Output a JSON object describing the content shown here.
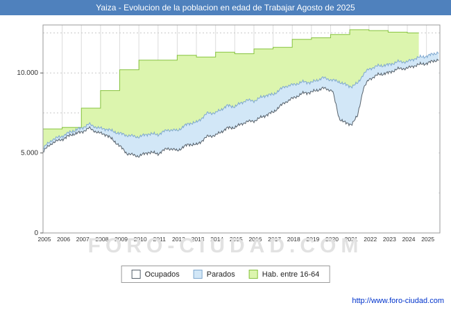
{
  "title": "Yaiza - Evolucion de la poblacion en edad de Trabajar Agosto de 2025",
  "watermark": "FORO-CIUDAD.COM",
  "footer": {
    "url": "http://www.foro-ciudad.com"
  },
  "colors": {
    "title_bar": "#4f81bd",
    "grid_vertical": "#dcdcdc",
    "grid_horizontal": "#c8c8c8",
    "plot_border": "#999999",
    "hab_fill": "#dcf5ae",
    "hab_stroke": "#86c33e",
    "parados_fill": "#d2e7f7",
    "parados_stroke": "#7fa8cf",
    "ocupados_fill": "#ffffff",
    "ocupados_stroke": "#55606a",
    "url_blue": "#0033cc"
  },
  "chart_data": {
    "type": "area",
    "title": "Yaiza - Evolucion de la poblacion en edad de Trabajar Agosto de 2025",
    "xlabel": "",
    "ylabel": "",
    "xlim": [
      2005,
      2025.7
    ],
    "ylim": [
      0,
      13000
    ],
    "grid": true,
    "legend_position": "bottom",
    "x_tick_labels": [
      "2005",
      "2006",
      "2007",
      "2008",
      "2009",
      "2010",
      "2011",
      "2012",
      "2013",
      "2014",
      "2015",
      "2016",
      "2017",
      "2018",
      "2019",
      "2020",
      "2021",
      "2022",
      "2023",
      "2024",
      "2025"
    ],
    "x_tick_values": [
      2005,
      2006,
      2007,
      2008,
      2009,
      2010,
      2011,
      2012,
      2013,
      2014,
      2015,
      2016,
      2017,
      2018,
      2019,
      2020,
      2021,
      2022,
      2023,
      2024,
      2025
    ],
    "y_ticks": [
      {
        "v": 0,
        "label": "0"
      },
      {
        "v": 5000,
        "label": "5.000"
      },
      {
        "v": 10000,
        "label": "10.000"
      }
    ],
    "y_grid_values": [
      2500,
      5000,
      7500,
      10000,
      12500
    ],
    "legend": [
      {
        "label": "Ocupados",
        "fill": "#ffffff",
        "border": "#55606a"
      },
      {
        "label": "Parados",
        "fill": "#d2e7f7",
        "border": "#7fa8cf"
      },
      {
        "label": "Hab. entre 16-64",
        "fill": "#dcf5ae",
        "border": "#86c33e"
      }
    ],
    "series": [
      {
        "name": "Hab. entre 16-64",
        "style": "step-area",
        "cumulative": false,
        "x": [
          2005,
          2006,
          2007,
          2008,
          2009,
          2010,
          2011,
          2012,
          2013,
          2014,
          2015,
          2016,
          2017,
          2018,
          2019,
          2020,
          2021,
          2022,
          2023,
          2024
        ],
        "y": [
          6500,
          6600,
          7800,
          8900,
          10200,
          10800,
          10800,
          11100,
          11000,
          11300,
          11200,
          11500,
          11600,
          12100,
          12200,
          12400,
          12700,
          12650,
          12550,
          12500
        ],
        "x_end": 2024.6
      },
      {
        "name": "Parados",
        "style": "area",
        "cumulative": true,
        "note": "y values are Ocupados+Parados (upper boundary of blue band)",
        "x": [
          2005.0,
          2005.5,
          2006.0,
          2006.5,
          2007.0,
          2007.4,
          2007.9,
          2008.3,
          2008.9,
          2009.4,
          2010.0,
          2010.5,
          2011.0,
          2011.5,
          2012.0,
          2012.6,
          2013.0,
          2013.6,
          2014.0,
          2014.6,
          2015.0,
          2015.6,
          2016.0,
          2016.6,
          2017.0,
          2017.6,
          2018.0,
          2018.6,
          2019.0,
          2019.6,
          2020.1,
          2020.45,
          2020.8,
          2021.1,
          2021.4,
          2021.7,
          2022.0,
          2022.5,
          2023.0,
          2023.5,
          2024.0,
          2024.5,
          2025.0,
          2025.65
        ],
        "y": [
          5300,
          5850,
          6050,
          6350,
          6550,
          6800,
          6550,
          6500,
          6250,
          6100,
          6000,
          6200,
          6150,
          6450,
          6400,
          6850,
          6900,
          7500,
          7500,
          7950,
          7900,
          8300,
          8250,
          8600,
          8650,
          9150,
          9250,
          9450,
          9400,
          9700,
          9550,
          9450,
          9250,
          9150,
          9350,
          9900,
          10250,
          10450,
          10500,
          10700,
          10700,
          10950,
          11050,
          11300
        ]
      },
      {
        "name": "Ocupados",
        "style": "area",
        "cumulative": false,
        "x": [
          2005.0,
          2005.5,
          2006.0,
          2006.5,
          2007.0,
          2007.4,
          2007.9,
          2008.3,
          2008.9,
          2009.4,
          2010.0,
          2010.5,
          2011.0,
          2011.5,
          2012.0,
          2012.6,
          2013.0,
          2013.6,
          2014.0,
          2014.6,
          2015.0,
          2015.6,
          2016.0,
          2016.6,
          2017.0,
          2017.6,
          2018.0,
          2018.6,
          2019.0,
          2019.6,
          2020.1,
          2020.45,
          2020.8,
          2021.1,
          2021.4,
          2021.7,
          2022.0,
          2022.5,
          2023.0,
          2023.5,
          2024.0,
          2024.5,
          2025.0,
          2025.65
        ],
        "y": [
          5100,
          5650,
          5850,
          6150,
          6300,
          6550,
          6250,
          6150,
          5550,
          4950,
          4800,
          5050,
          4950,
          5300,
          5150,
          5550,
          5500,
          6050,
          6100,
          6550,
          6600,
          6950,
          7000,
          7350,
          7550,
          8150,
          8400,
          8750,
          8800,
          9050,
          8900,
          7150,
          6850,
          6800,
          7300,
          9000,
          9600,
          9900,
          10000,
          10250,
          10300,
          10500,
          10600,
          10850
        ]
      }
    ]
  }
}
